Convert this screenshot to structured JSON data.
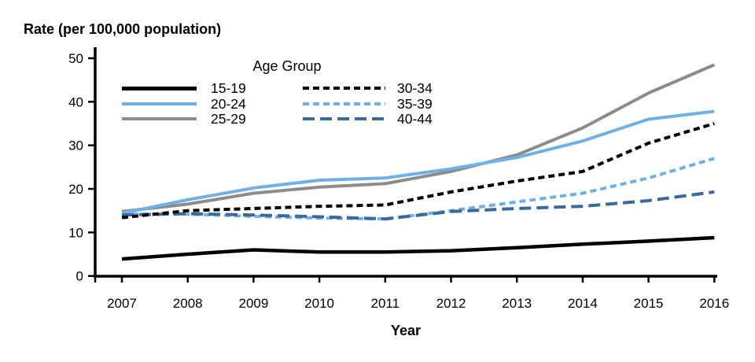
{
  "chart_data": {
    "type": "line",
    "title": "Rate (per 100,000 population)",
    "xlabel": "Year",
    "ylabel": "Rate (per 100,000 population)",
    "x": [
      2007,
      2008,
      2009,
      2010,
      2011,
      2012,
      2013,
      2014,
      2015,
      2016
    ],
    "ylim": [
      0,
      50
    ],
    "yticks": [
      0,
      10,
      20,
      30,
      40,
      50
    ],
    "grid": false,
    "axis_color": "#000000",
    "legend": {
      "title": "Age Group",
      "position": "top-inside",
      "columns": 2
    },
    "series": [
      {
        "name": "15-19",
        "color": "#000000",
        "dash": "solid",
        "values": [
          3.9,
          5.0,
          6.0,
          5.5,
          5.5,
          5.8,
          6.5,
          7.3,
          8.0,
          8.8
        ]
      },
      {
        "name": "20-24",
        "color": "#6FB1E6",
        "dash": "solid",
        "values": [
          14.4,
          17.5,
          20.2,
          22.0,
          22.5,
          24.6,
          27.2,
          31.0,
          36.0,
          37.8
        ]
      },
      {
        "name": "25-29",
        "color": "#8C8C8C",
        "dash": "solid",
        "values": [
          14.8,
          16.5,
          19.0,
          20.4,
          21.2,
          24.0,
          27.8,
          34.0,
          42.0,
          48.5
        ]
      },
      {
        "name": "30-34",
        "color": "#000000",
        "dash": "dashed",
        "values": [
          13.4,
          15.0,
          15.5,
          16.0,
          16.3,
          19.3,
          21.8,
          24.0,
          30.5,
          35.0
        ]
      },
      {
        "name": "35-39",
        "color": "#6FB1E6",
        "dash": "dashed",
        "values": [
          14.2,
          14.2,
          13.7,
          13.3,
          13.1,
          15.0,
          17.0,
          19.0,
          22.5,
          27.0
        ]
      },
      {
        "name": "40-44",
        "color": "#3B6A9A",
        "dash": "long-dash",
        "values": [
          14.0,
          14.3,
          14.0,
          13.6,
          13.1,
          14.8,
          15.5,
          16.0,
          17.3,
          19.3
        ]
      }
    ]
  }
}
